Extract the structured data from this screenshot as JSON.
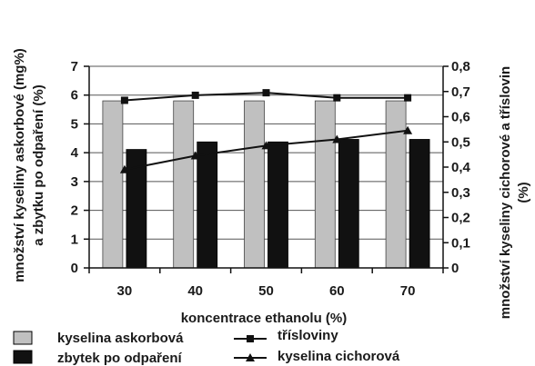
{
  "chart_data": {
    "type": "bar",
    "categories": [
      "30",
      "40",
      "50",
      "60",
      "70"
    ],
    "xlabel": "koncentrace ethanolu (%)",
    "ylabel_left_line1": "množství kyseliny askorbové (mg%)",
    "ylabel_left_line2": "a zbytku po odpaření (%)",
    "ylabel_right_line1": "množství kyseliny cichorové a tříslovin",
    "ylabel_right_line2": "(%)",
    "ylim_left": [
      0,
      7
    ],
    "ylim_right": [
      0,
      0.8
    ],
    "yticks_left": [
      "0",
      "1",
      "2",
      "3",
      "4",
      "5",
      "6",
      "7"
    ],
    "yticks_right": [
      "0",
      "0,1",
      "0,2",
      "0,3",
      "0,4",
      "0,5",
      "0,6",
      "0,7",
      "0,8"
    ],
    "grid": "horizontal",
    "series": [
      {
        "name": "kyselina askorbová",
        "kind": "bar",
        "axis": "left",
        "color": "#c0c0c0",
        "values": [
          5.8,
          5.8,
          5.8,
          5.8,
          5.8
        ]
      },
      {
        "name": "zbytek po odpaření",
        "kind": "bar",
        "axis": "left",
        "color": "#111111",
        "values": [
          0.47,
          0.5,
          0.5,
          0.51,
          0.51
        ]
      },
      {
        "name": "třísloviny",
        "kind": "line",
        "marker": "square",
        "axis": "right",
        "color": "#111111",
        "values": [
          0.665,
          0.685,
          0.695,
          0.675,
          0.675
        ]
      },
      {
        "name": "kyselina cichorová",
        "kind": "line",
        "marker": "triangle",
        "axis": "right",
        "color": "#111111",
        "values": [
          0.39,
          0.445,
          0.485,
          0.51,
          0.545
        ]
      }
    ],
    "legend_position": "bottom"
  }
}
